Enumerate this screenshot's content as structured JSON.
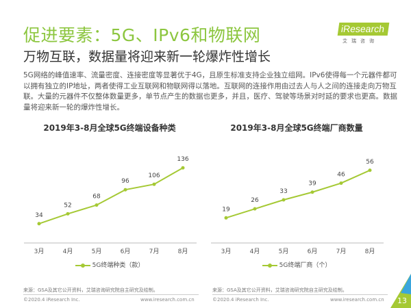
{
  "header": {
    "title": "促进要素：5G、IPv6和物联网",
    "subtitle": "万物互联，数据量将迎来新一轮爆炸性增长",
    "logo_text": "iResearch",
    "logo_sub": "艾瑞咨询"
  },
  "body_text": "5G网络的峰值速率、流量密度、连接密度等显著优于4G，且原生标准支持企业独立组网。IPv6使得每一个元器件都可以拥有独立的IP地址，两者使得工业互联网和物联网得以落地。互联网的连接作用由过去人与人之间的连接走向万物互联。大量的元器件不仅整体数量更多，单节点产生的数据也更多，并且，医疗、驾驶等场景对时延的要求也更高。数据量将迎来新一轮的爆炸性增长。",
  "colors": {
    "accent": "#8cc63f",
    "series": "#a5c934"
  },
  "chart_data": [
    {
      "type": "line",
      "title": "2019年3-8月全球5G终端设备种类",
      "categories": [
        "3月",
        "4月",
        "5月",
        "6月",
        "7月",
        "8月"
      ],
      "series": [
        {
          "name": "5G终端种类（款）",
          "values": [
            34,
            52,
            68,
            96,
            106,
            136
          ]
        }
      ],
      "ylim": [
        0,
        155
      ],
      "grid": false,
      "legend": "bottom"
    },
    {
      "type": "line",
      "title": "2019年3-8月全球5G终端厂商数量",
      "categories": [
        "3月",
        "4月",
        "5月",
        "6月",
        "7月",
        "8月"
      ],
      "series": [
        {
          "name": "5G终端厂商（个）",
          "values": [
            19,
            26,
            33,
            39,
            46,
            56
          ]
        }
      ],
      "ylim": [
        0,
        66
      ],
      "grid": false,
      "legend": "bottom"
    }
  ],
  "footer": {
    "source": "来源：GSA及其它公开资料，艾瑞咨询研究院自主研究及绘制。",
    "copyright": "©2020.4 iResearch Inc.",
    "url": "www.iresearch.com.cn",
    "page": "13"
  }
}
